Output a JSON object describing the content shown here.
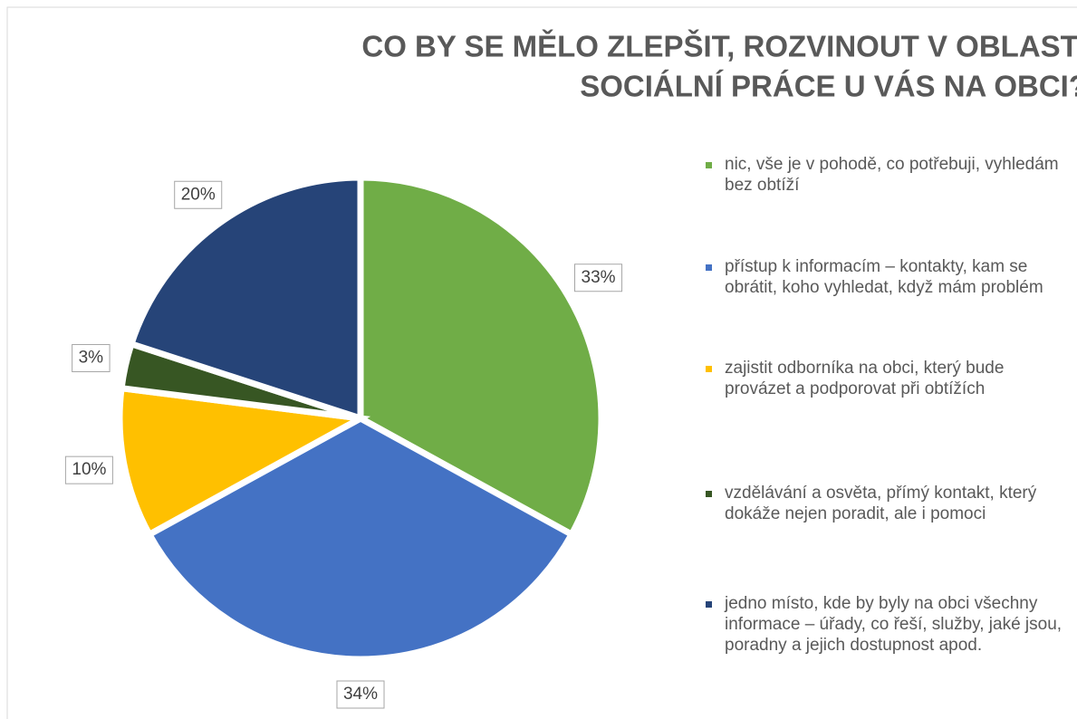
{
  "chart_data": {
    "type": "pie",
    "title": [
      "CO BY SE MĚLO ZLEPŠIT, ROZVINOUT V OBLASTI",
      "SOCIÁLNÍ PRÁCE U VÁS NA OBCI?"
    ],
    "categories": [
      "nic, vše je v pohodě, co potřebuji, vyhledám bez obtíží",
      "přístup k informacím – kontakty, kam se obrátit, koho vyhledat, když mám problém",
      "zajistit odborníka na obci, který bude provázet a podporovat při obtížích",
      "vzdělávání a osvěta, přímý kontakt, který dokáže nejen poradit, ale i pomoci",
      "jedno místo, kde by byly na obci všechny informace – úřady, co řeší, služby, jaké jsou, poradny a jejich dostupnost apod."
    ],
    "values": [
      33,
      34,
      10,
      3,
      20
    ],
    "value_labels": [
      "33%",
      "34%",
      "10%",
      "3%",
      "20%"
    ],
    "colors": [
      "#70ad47",
      "#4472c4",
      "#ffc000",
      "#375623",
      "#264478"
    ],
    "legend": "right"
  }
}
